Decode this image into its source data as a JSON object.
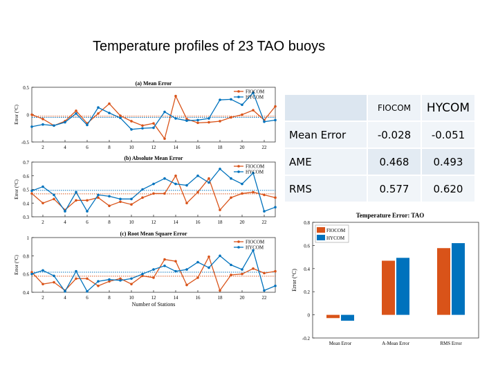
{
  "slide": {
    "title": "Temperature profiles of 23 TAO buoys"
  },
  "colors": {
    "fiocom": "#d95319",
    "hycom": "#0072bd"
  },
  "stats_table": {
    "columns": [
      "FIOCOM",
      "HYCOM"
    ],
    "rows": [
      {
        "label": "Mean Error",
        "fiocom": "-0.028",
        "hycom": "-0.051"
      },
      {
        "label": "AME",
        "fiocom": "0.468",
        "hycom": "0.493"
      },
      {
        "label": "RMS",
        "fiocom": "0.577",
        "hycom": "0.620"
      }
    ]
  },
  "chart_data": [
    {
      "type": "line",
      "title": "(a) Mean Error",
      "xlabel": "",
      "ylabel": "Error (°C)",
      "xlim": [
        1,
        23
      ],
      "ylim": [
        -0.5,
        0.5
      ],
      "yticks": [
        -0.5,
        0,
        0.5
      ],
      "xticks": [
        2,
        4,
        6,
        8,
        10,
        12,
        14,
        16,
        18,
        20,
        22
      ],
      "legend": "top-right",
      "mean_lines": [
        -0.028,
        -0.051
      ],
      "x": [
        1,
        2,
        3,
        4,
        5,
        6,
        7,
        8,
        9,
        10,
        11,
        12,
        13,
        14,
        15,
        16,
        17,
        18,
        19,
        20,
        21,
        22,
        23
      ],
      "series": [
        {
          "name": "FIOCOM",
          "values": [
            0.0,
            -0.08,
            -0.2,
            -0.12,
            0.07,
            -0.16,
            0.02,
            0.2,
            -0.02,
            -0.12,
            -0.2,
            -0.16,
            -0.44,
            0.34,
            -0.08,
            -0.15,
            -0.14,
            -0.12,
            -0.05,
            0.0,
            0.08,
            -0.1,
            0.15
          ]
        },
        {
          "name": "HYCOM",
          "values": [
            -0.22,
            -0.18,
            -0.2,
            -0.14,
            0.02,
            -0.19,
            0.13,
            0.03,
            -0.06,
            -0.27,
            -0.25,
            -0.24,
            0.05,
            -0.07,
            -0.11,
            -0.1,
            -0.07,
            0.27,
            0.28,
            0.18,
            0.4,
            -0.13,
            -0.1
          ]
        }
      ]
    },
    {
      "type": "line",
      "title": "(b) Absolute Mean Error",
      "xlabel": "",
      "ylabel": "Error (°C)",
      "xlim": [
        1,
        23
      ],
      "ylim": [
        0.3,
        0.7
      ],
      "yticks": [
        0.3,
        0.4,
        0.5,
        0.6,
        0.7
      ],
      "xticks": [
        2,
        4,
        6,
        8,
        10,
        12,
        14,
        16,
        18,
        20,
        22
      ],
      "legend": "top-right",
      "mean_lines": [
        0.468,
        0.493
      ],
      "x": [
        1,
        2,
        3,
        4,
        5,
        6,
        7,
        8,
        9,
        10,
        11,
        12,
        13,
        14,
        15,
        16,
        17,
        18,
        19,
        20,
        21,
        22,
        23
      ],
      "series": [
        {
          "name": "FIOCOM",
          "values": [
            0.47,
            0.4,
            0.43,
            0.35,
            0.42,
            0.42,
            0.44,
            0.38,
            0.41,
            0.39,
            0.44,
            0.47,
            0.47,
            0.6,
            0.4,
            0.48,
            0.58,
            0.35,
            0.44,
            0.47,
            0.48,
            0.46,
            0.44
          ]
        },
        {
          "name": "HYCOM",
          "values": [
            0.49,
            0.52,
            0.46,
            0.34,
            0.48,
            0.34,
            0.46,
            0.45,
            0.43,
            0.43,
            0.5,
            0.54,
            0.58,
            0.54,
            0.53,
            0.6,
            0.55,
            0.65,
            0.58,
            0.54,
            0.62,
            0.34,
            0.37
          ]
        }
      ]
    },
    {
      "type": "line",
      "title": "(c) Root Mean Square  Error",
      "xlabel": "Number of Stations",
      "ylabel": "Error (°C)",
      "xlim": [
        1,
        23
      ],
      "ylim": [
        0.4,
        1.0
      ],
      "yticks": [
        0.4,
        0.6,
        0.8,
        1
      ],
      "xticks": [
        2,
        4,
        6,
        8,
        10,
        12,
        14,
        16,
        18,
        20,
        22
      ],
      "legend": "top-right",
      "mean_lines": [
        0.577,
        0.62
      ],
      "x": [
        1,
        2,
        3,
        4,
        5,
        6,
        7,
        8,
        9,
        10,
        11,
        12,
        13,
        14,
        15,
        16,
        17,
        18,
        19,
        20,
        21,
        22,
        23
      ],
      "series": [
        {
          "name": "FIOCOM",
          "values": [
            0.62,
            0.49,
            0.51,
            0.42,
            0.55,
            0.55,
            0.47,
            0.52,
            0.55,
            0.49,
            0.58,
            0.56,
            0.76,
            0.74,
            0.48,
            0.56,
            0.79,
            0.42,
            0.59,
            0.6,
            0.66,
            0.61,
            0.63
          ]
        },
        {
          "name": "HYCOM",
          "values": [
            0.6,
            0.64,
            0.58,
            0.41,
            0.63,
            0.41,
            0.52,
            0.54,
            0.53,
            0.55,
            0.6,
            0.65,
            0.69,
            0.63,
            0.65,
            0.73,
            0.67,
            0.8,
            0.7,
            0.65,
            0.86,
            0.42,
            0.47
          ]
        }
      ]
    },
    {
      "type": "bar",
      "title": "Temperature Error: TAO",
      "xlabel": "",
      "ylabel": "Error (°C)",
      "categories": [
        "Mean Error",
        "A-Mean Error",
        "RMS Error"
      ],
      "ylim": [
        -0.2,
        0.8
      ],
      "yticks": [
        -0.2,
        0,
        0.2,
        0.4,
        0.6,
        0.8
      ],
      "legend": "top-left",
      "series": [
        {
          "name": "FIOCOM",
          "values": [
            -0.028,
            0.468,
            0.577
          ]
        },
        {
          "name": "HYCOM",
          "values": [
            -0.051,
            0.493,
            0.62
          ]
        }
      ]
    }
  ]
}
